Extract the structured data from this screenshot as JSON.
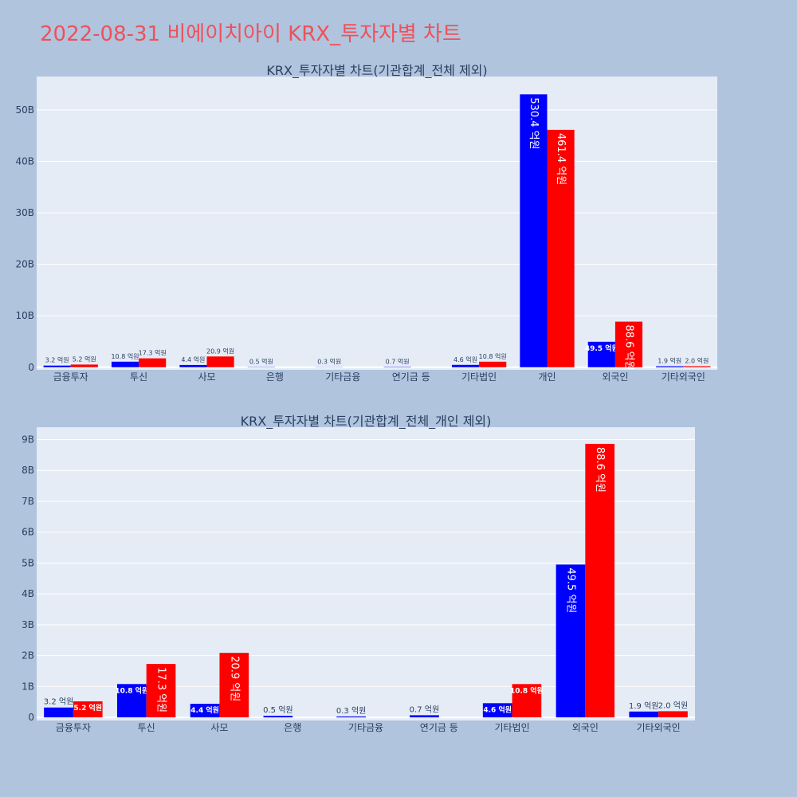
{
  "page_title": "2022-08-31 비에이치아이 KRX_투자자별 차트",
  "colors": {
    "series_a": "#0000ff",
    "series_b": "#ff0000",
    "plot_bg": "#e5ecf6",
    "page_bg": "#b0c4de",
    "title": "#f0505a",
    "text": "#2a3f5f"
  },
  "chart_data": [
    {
      "type": "bar",
      "title": "KRX_투자자별 차트(기관합계_전체 제외)",
      "categories": [
        "금융투자",
        "투신",
        "사모",
        "은행",
        "기타금융",
        "연기금 등",
        "기타법인",
        "개인",
        "외국인",
        "기타외국인"
      ],
      "series": [
        {
          "values": [
            0.32,
            1.08,
            0.44,
            0.05,
            0.03,
            0.07,
            0.46,
            53.04,
            4.95,
            0.19
          ],
          "labels": [
            "3.2 억원",
            "10.8 억원",
            "4.4 억원",
            "0.5 억원",
            "0.3 억원",
            "0.7 억원",
            "4.6 억원",
            "530.4 억원",
            "49.5 억원",
            "1.9 억원"
          ]
        },
        {
          "values": [
            0.52,
            1.73,
            2.09,
            0,
            0,
            0,
            1.08,
            46.14,
            8.86,
            0.2
          ],
          "labels": [
            "5.2 억원",
            "17.3 억원",
            "20.9 억원",
            "",
            "",
            "",
            "10.8 억원",
            "461.4 억원",
            "88.6 억원",
            "2.0 억원"
          ]
        }
      ],
      "ylim": [
        -0.5,
        56.5
      ],
      "yticks": [
        0,
        10,
        20,
        30,
        40,
        50
      ],
      "ytick_labels": [
        "0",
        "10B",
        "20B",
        "30B",
        "40B",
        "50B"
      ],
      "grid": true
    },
    {
      "type": "bar",
      "title": "KRX_투자자별 차트(기관합계_전체_개인 제외)",
      "categories": [
        "금융투자",
        "투신",
        "사모",
        "은행",
        "기타금융",
        "연기금 등",
        "기타법인",
        "외국인",
        "기타외국인"
      ],
      "series": [
        {
          "values": [
            0.32,
            1.08,
            0.44,
            0.05,
            0.03,
            0.07,
            0.46,
            4.95,
            0.19
          ],
          "labels": [
            "3.2 억원",
            "10.8 억원",
            "4.4 억원",
            "0.5 억원",
            "0.3 억원",
            "0.7 억원",
            "4.6 억원",
            "49.5 억원",
            "1.9 억원"
          ]
        },
        {
          "values": [
            0.52,
            1.73,
            2.09,
            0,
            0,
            0,
            1.08,
            8.86,
            0.2
          ],
          "labels": [
            "5.2 억원",
            "17.3 억원",
            "20.9 억원",
            "",
            "",
            "",
            "10.8 억원",
            "88.6 억원",
            "2.0 억원"
          ]
        }
      ],
      "ylim": [
        -0.1,
        9.4
      ],
      "yticks": [
        0,
        1,
        2,
        3,
        4,
        5,
        6,
        7,
        8,
        9
      ],
      "ytick_labels": [
        "0",
        "1B",
        "2B",
        "3B",
        "4B",
        "5B",
        "6B",
        "7B",
        "8B",
        "9B"
      ],
      "grid": true
    }
  ]
}
